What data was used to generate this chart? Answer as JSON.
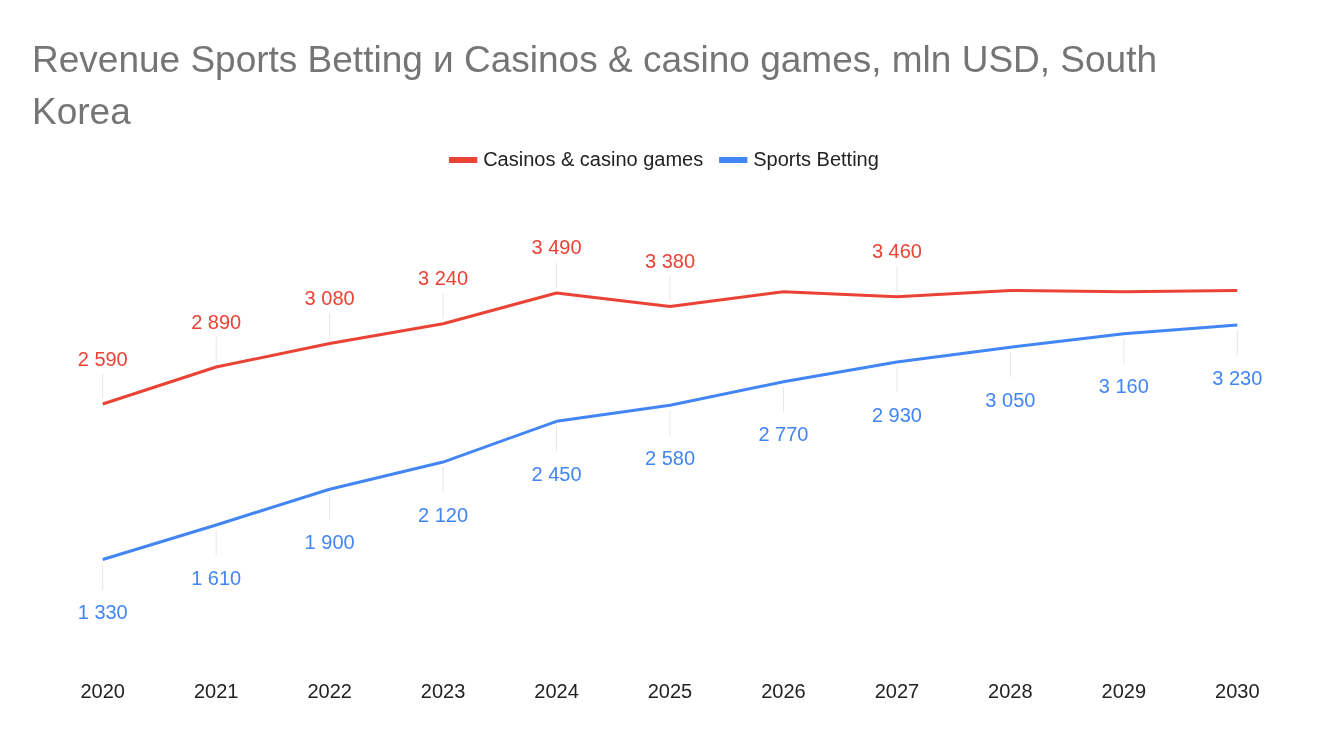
{
  "chart_data": {
    "type": "line",
    "title": "Revenue Sports Betting и Casinos & casino games, mln USD, South Korea",
    "categories": [
      "2020",
      "2021",
      "2022",
      "2023",
      "2024",
      "2025",
      "2026",
      "2027",
      "2028",
      "2029",
      "2030"
    ],
    "series": [
      {
        "name": "Casinos & casino games",
        "color": "#ea4335",
        "values": [
          2590,
          2890,
          3080,
          3240,
          3490,
          3380,
          3500,
          3460,
          3510,
          3500,
          3510
        ],
        "value_labels": [
          "2 590",
          "2 890",
          "3 080",
          "3 240",
          "3 490",
          "3 380",
          null,
          "3 460",
          null,
          null,
          null
        ]
      },
      {
        "name": "Sports Betting",
        "color": "#4285f4",
        "values": [
          1330,
          1610,
          1900,
          2120,
          2450,
          2580,
          2770,
          2930,
          3050,
          3160,
          3230
        ],
        "value_labels": [
          "1 330",
          "1 610",
          "1 900",
          "2 120",
          "2 450",
          "2 580",
          "2 770",
          "2 930",
          "3 050",
          "3 160",
          "3 230"
        ]
      }
    ],
    "tick_labels": "x",
    "grid": false,
    "legend": "top",
    "marker": "none",
    "line_style": "solid"
  }
}
